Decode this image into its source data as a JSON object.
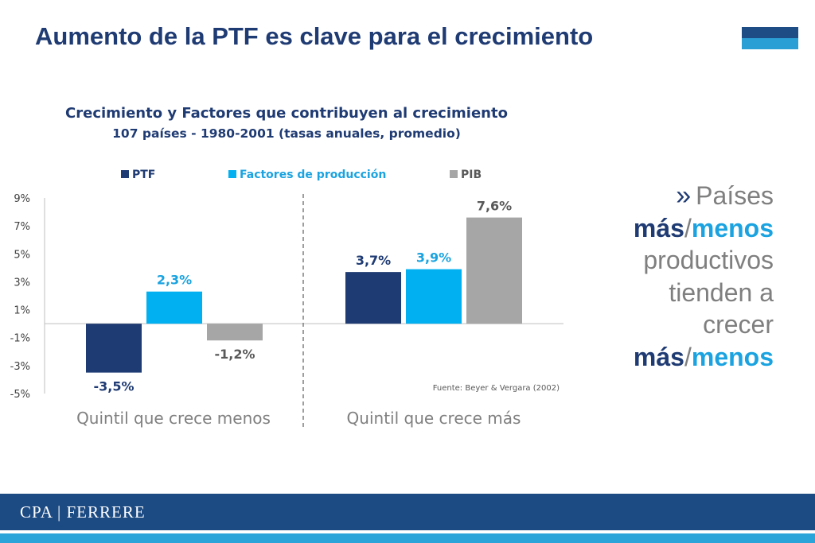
{
  "slide": {
    "title": "Aumento de la PTF es clave para el crecimiento"
  },
  "chart_data": {
    "type": "bar",
    "title": "Crecimiento y Factores que contribuyen al crecimiento",
    "subtitle": "107 países - 1980-2001 (tasas anuales, promedio)",
    "categories": [
      "Quintil que crece menos",
      "Quintil que crece más"
    ],
    "series": [
      {
        "name": "PTF",
        "values": [
          -3.5,
          3.7
        ],
        "labels": [
          "-3,5%",
          "3,7%"
        ],
        "color": "#1f3b73",
        "label_color": "#1f3b73"
      },
      {
        "name": "Factores de producción",
        "values": [
          2.3,
          3.9
        ],
        "labels": [
          "2,3%",
          "3,9%"
        ],
        "color": "#00b0f0",
        "label_color": "#1aa3e0"
      },
      {
        "name": "PIB",
        "values": [
          -1.2,
          7.6
        ],
        "labels": [
          "-1,2%",
          "7,6%"
        ],
        "color": "#a6a6a6",
        "label_color": "#595959"
      }
    ],
    "yticks": [
      9,
      7,
      5,
      3,
      1,
      -1,
      -3,
      -5
    ],
    "ytick_labels": [
      "9%",
      "7%",
      "5%",
      "3%",
      "1%",
      "-1%",
      "-3%",
      "-5%"
    ],
    "ylim": [
      -5,
      9
    ],
    "legend_position": "top",
    "grid": false,
    "source": "Fuente: Beyer & Vergara (2002)"
  },
  "note": {
    "chevron": "»",
    "line1": "Países",
    "mas": "más",
    "slash": "/",
    "menos": "menos",
    "line3": "productivos",
    "line4": "tienden a",
    "line5": "crecer"
  },
  "footer": {
    "brand": "CPA | FERRERE",
    "colors": {
      "band": "#1c4a82",
      "stripe": "#2aa4d9"
    }
  }
}
